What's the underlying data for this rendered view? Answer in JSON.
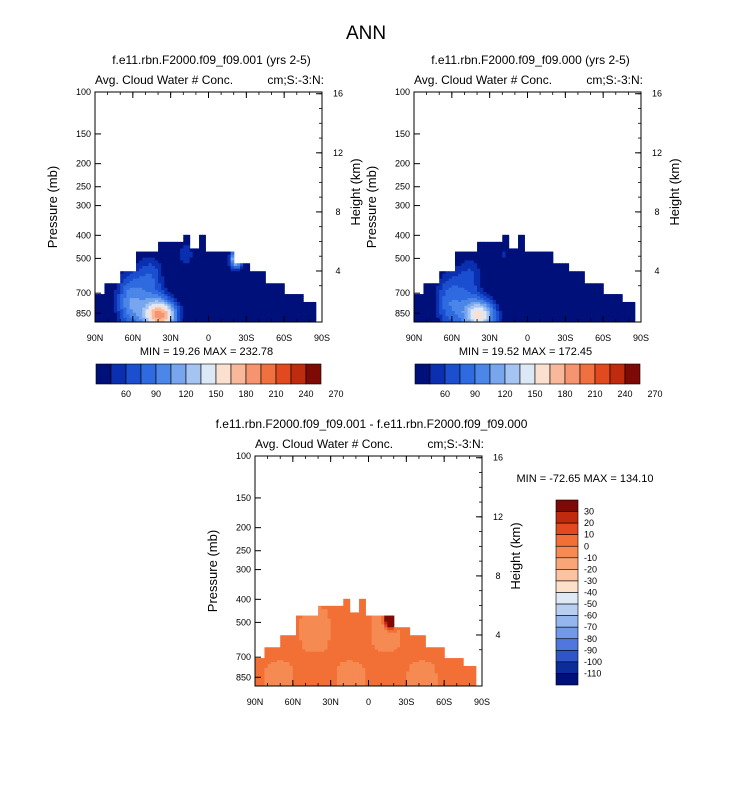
{
  "page_title": "ANN",
  "chart_data": [
    {
      "type": "heatmap",
      "title": "f.e11.rbn.F2000.f09_f09.001 (yrs 2-5)",
      "left_label": "Avg. Cloud Water # Conc.",
      "right_label": "cm;S:-3:N:",
      "xlabel": "",
      "ylabel": "Pressure (mb)",
      "ylabel_right": "Height (km)",
      "x_ticks": [
        "90N",
        "60N",
        "30N",
        "0",
        "30S",
        "60S",
        "90S"
      ],
      "y_ticks": [
        "100",
        "150",
        "200",
        "250",
        "300",
        "400",
        "500",
        "700",
        "850"
      ],
      "y_right_ticks": [
        "16",
        "12",
        "8",
        "4"
      ],
      "stats": "MIN = 19.26  MAX = 232.78",
      "min": 19.26,
      "max": 232.78,
      "colorbar_labels": [
        "60",
        "90",
        "120",
        "150",
        "180",
        "210",
        "240",
        "270"
      ]
    },
    {
      "type": "heatmap",
      "title": "f.e11.rbn.F2000.f09_f09.000 (yrs 2-5)",
      "left_label": "Avg. Cloud Water # Conc.",
      "right_label": "cm;S:-3:N:",
      "xlabel": "",
      "ylabel": "Pressure (mb)",
      "ylabel_right": "Height (km)",
      "x_ticks": [
        "90N",
        "60N",
        "30N",
        "0",
        "30S",
        "60S",
        "90S"
      ],
      "y_ticks": [
        "100",
        "150",
        "200",
        "250",
        "300",
        "400",
        "500",
        "700",
        "850"
      ],
      "y_right_ticks": [
        "16",
        "12",
        "8",
        "4"
      ],
      "stats": "MIN = 19.52  MAX = 172.45",
      "min": 19.52,
      "max": 172.45,
      "colorbar_labels": [
        "60",
        "90",
        "120",
        "150",
        "180",
        "210",
        "240",
        "270"
      ]
    },
    {
      "type": "heatmap",
      "title": "f.e11.rbn.F2000.f09_f09.001 - f.e11.rbn.F2000.f09_f09.000",
      "left_label": "Avg. Cloud Water # Conc.",
      "right_label": "cm;S:-3:N:",
      "xlabel": "",
      "ylabel": "Pressure (mb)",
      "ylabel_right": "Height (km)",
      "x_ticks": [
        "90N",
        "60N",
        "30N",
        "0",
        "30S",
        "60S",
        "90S"
      ],
      "y_ticks": [
        "100",
        "150",
        "200",
        "250",
        "300",
        "400",
        "500",
        "700",
        "850"
      ],
      "y_right_ticks": [
        "16",
        "12",
        "8",
        "4"
      ],
      "stats": "MIN = -72.65  MAX = 134.10",
      "min": -72.65,
      "max": 134.1,
      "colorbar_labels": [
        "30",
        "20",
        "10",
        "0",
        "-10",
        "-20",
        "-30",
        "-40",
        "-50",
        "-60",
        "-70",
        "-80",
        "-90",
        "-100",
        "-110"
      ]
    }
  ],
  "colors": {
    "abs_scale": [
      "#00107a",
      "#0a2fb0",
      "#1b4fd0",
      "#2f6ae0",
      "#4b86e8",
      "#78a6ee",
      "#a6c4f2",
      "#dde8f6",
      "#fbe0d0",
      "#f8b899",
      "#f5946e",
      "#f07040",
      "#e2491e",
      "#c02a0e",
      "#7e0a05"
    ],
    "diff_scale": [
      "#7e0a05",
      "#c02a0e",
      "#e2491e",
      "#f27036",
      "#f58a52",
      "#f8a577",
      "#fbc3a0",
      "#fde0ca",
      "#dfe9f6",
      "#b9cff2",
      "#95b5ee",
      "#7299e8",
      "#5078dc",
      "#2f55c8",
      "#0d2c9a",
      "#00107a"
    ]
  }
}
